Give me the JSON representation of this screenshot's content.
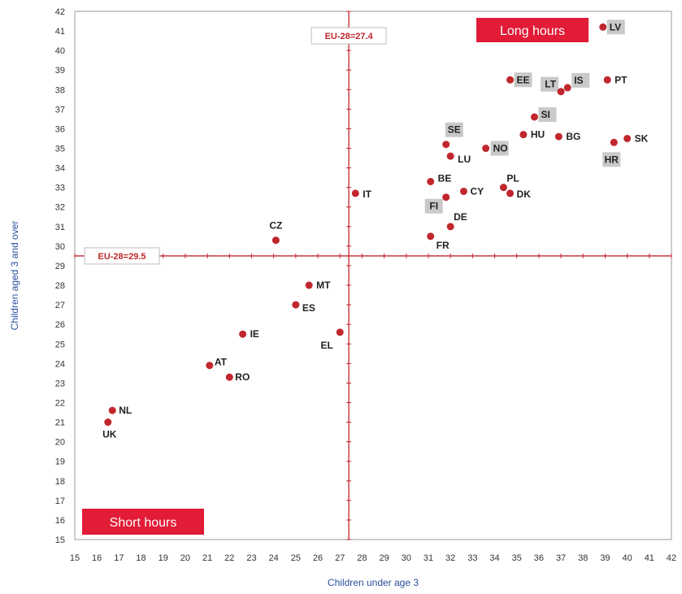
{
  "chart_data": {
    "type": "scatter",
    "xlabel": "Children under age 3",
    "ylabel": "Children aged 3 and over",
    "xlim": [
      15,
      42
    ],
    "ylim": [
      15,
      42
    ],
    "x_ticks": [
      15,
      16,
      17,
      18,
      19,
      20,
      21,
      22,
      23,
      24,
      25,
      26,
      27,
      28,
      29,
      30,
      31,
      32,
      33,
      34,
      35,
      36,
      37,
      38,
      39,
      40,
      41,
      42
    ],
    "y_ticks": [
      15,
      16,
      17,
      18,
      19,
      20,
      21,
      22,
      23,
      24,
      25,
      26,
      27,
      28,
      29,
      30,
      31,
      32,
      33,
      34,
      35,
      36,
      37,
      38,
      39,
      40,
      41,
      42
    ],
    "grid": false,
    "reference_lines": {
      "vertical": {
        "value": 27.4,
        "label": "EU-28=27.4"
      },
      "horizontal": {
        "value": 29.5,
        "label": "EU-28=29.5"
      }
    },
    "zones": {
      "top_right": "Long hours",
      "bottom_left": "Short hours"
    },
    "marker_color": "#c0272d",
    "reference_color": "#c0272d",
    "points": [
      {
        "label": "LV",
        "x": 38.9,
        "y": 41.2,
        "highlight": true
      },
      {
        "label": "EE",
        "x": 34.7,
        "y": 38.5,
        "highlight": true
      },
      {
        "label": "LT",
        "x": 37.0,
        "y": 37.9,
        "highlight": true
      },
      {
        "label": "IS",
        "x": 37.3,
        "y": 38.1,
        "highlight": true
      },
      {
        "label": "PT",
        "x": 39.1,
        "y": 38.5,
        "highlight": false
      },
      {
        "label": "SI",
        "x": 35.8,
        "y": 36.6,
        "highlight": true
      },
      {
        "label": "HU",
        "x": 35.3,
        "y": 35.7,
        "highlight": false
      },
      {
        "label": "BG",
        "x": 36.9,
        "y": 35.6,
        "highlight": false
      },
      {
        "label": "SK",
        "x": 40.0,
        "y": 35.5,
        "highlight": false
      },
      {
        "label": "HR",
        "x": 39.4,
        "y": 35.3,
        "highlight": true
      },
      {
        "label": "SE",
        "x": 31.8,
        "y": 35.2,
        "highlight": true
      },
      {
        "label": "NO",
        "x": 33.6,
        "y": 35.0,
        "highlight": true
      },
      {
        "label": "LU",
        "x": 32.0,
        "y": 34.6,
        "highlight": false
      },
      {
        "label": "BE",
        "x": 31.1,
        "y": 33.3,
        "highlight": false
      },
      {
        "label": "PL",
        "x": 34.4,
        "y": 33.0,
        "highlight": false
      },
      {
        "label": "DK",
        "x": 34.7,
        "y": 32.7,
        "highlight": false
      },
      {
        "label": "CY",
        "x": 32.6,
        "y": 32.8,
        "highlight": false
      },
      {
        "label": "FI",
        "x": 31.8,
        "y": 32.5,
        "highlight": true
      },
      {
        "label": "IT",
        "x": 27.7,
        "y": 32.7,
        "highlight": false
      },
      {
        "label": "DE",
        "x": 32.0,
        "y": 31.0,
        "highlight": false
      },
      {
        "label": "FR",
        "x": 31.1,
        "y": 30.5,
        "highlight": false
      },
      {
        "label": "CZ",
        "x": 24.1,
        "y": 30.3,
        "highlight": false
      },
      {
        "label": "MT",
        "x": 25.6,
        "y": 28.0,
        "highlight": false
      },
      {
        "label": "ES",
        "x": 25.0,
        "y": 27.0,
        "highlight": false
      },
      {
        "label": "IE",
        "x": 22.6,
        "y": 25.5,
        "highlight": false
      },
      {
        "label": "EL",
        "x": 27.0,
        "y": 25.6,
        "highlight": false
      },
      {
        "label": "AT",
        "x": 21.1,
        "y": 23.9,
        "highlight": false
      },
      {
        "label": "RO",
        "x": 22.0,
        "y": 23.3,
        "highlight": false
      },
      {
        "label": "NL",
        "x": 16.7,
        "y": 21.6,
        "highlight": false
      },
      {
        "label": "UK",
        "x": 16.5,
        "y": 21.0,
        "highlight": false
      }
    ]
  }
}
